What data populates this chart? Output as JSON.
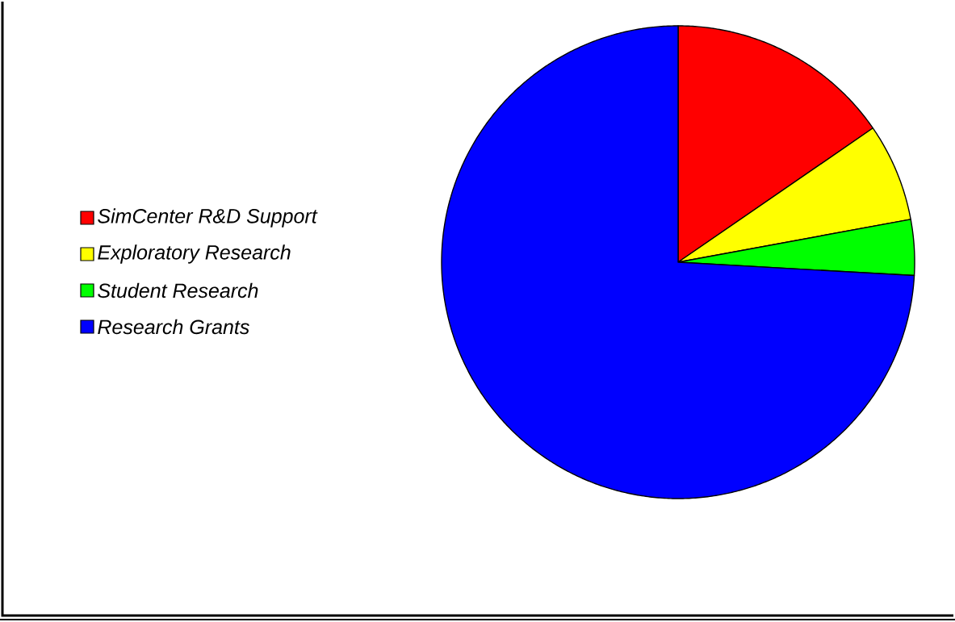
{
  "chart_data": {
    "type": "pie",
    "categories": [
      "SimCenter R&D Support",
      "Exploratory Research",
      "Student Research",
      "Research Grants"
    ],
    "values": [
      15.4,
      6.7,
      3.8,
      74.1
    ],
    "colors": [
      "#ff0000",
      "#ffff00",
      "#00ff00",
      "#0000ff"
    ],
    "legend": "left"
  }
}
